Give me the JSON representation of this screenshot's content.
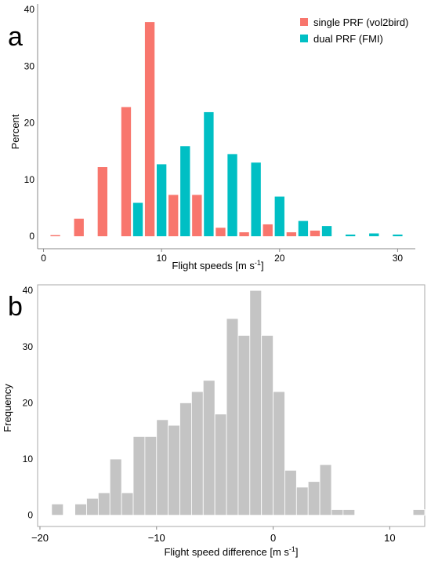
{
  "chart_data": [
    {
      "type": "bar",
      "panel_label": "a",
      "xlabel": "Flight speeds [m s",
      "xlabel_sup": "-1",
      "xlabel_close": "]",
      "ylabel": "Percent",
      "xlim": [
        -0.5,
        31.5
      ],
      "ylim": [
        -2.2,
        41
      ],
      "xticks": [
        0,
        10,
        20,
        30
      ],
      "yticks": [
        0,
        10,
        20,
        30,
        40
      ],
      "grid": false,
      "legend_position": "top-right",
      "bin_width": 2,
      "bin_centers": [
        1.5,
        3.5,
        5.5,
        7.5,
        9.5,
        11.5,
        13.5,
        15.5,
        17.5,
        19.5,
        21.5,
        23.5,
        25.5,
        27.5,
        29.5
      ],
      "series": [
        {
          "name": "single PRF (vol2bird)",
          "color": "#F8766D",
          "values": [
            0.2,
            3.1,
            12.2,
            22.8,
            37.8,
            7.3,
            7.3,
            1.5,
            0.7,
            2.1,
            0.7,
            1.0,
            0,
            0,
            0
          ]
        },
        {
          "name": "dual PRF (FMI)",
          "color": "#00BFC4",
          "values": [
            0,
            0,
            0,
            5.9,
            12.7,
            15.9,
            21.9,
            14.5,
            13.0,
            7.0,
            2.7,
            1.8,
            0.3,
            0.5,
            0.3
          ]
        }
      ]
    },
    {
      "type": "bar",
      "subtype": "histogram",
      "panel_label": "b",
      "xlabel": "Flight speed difference [m s",
      "xlabel_sup": "-1",
      "xlabel_close": "]",
      "ylabel": "Frequency",
      "xlim": [
        -20.2,
        13
      ],
      "ylim": [
        -2,
        41
      ],
      "xticks": [
        -20,
        -10,
        0,
        10
      ],
      "yticks": [
        0,
        10,
        20,
        30,
        40
      ],
      "grid": false,
      "color": "#C4C4C4",
      "bin_start": -19,
      "bin_width": 1,
      "values": [
        2,
        0,
        2,
        3,
        4,
        10,
        4,
        14,
        14,
        17,
        16,
        20,
        22,
        24,
        18,
        35,
        32,
        40,
        32,
        22,
        8,
        5,
        6,
        9,
        1,
        1,
        0,
        0,
        0,
        0,
        0,
        1
      ]
    }
  ]
}
